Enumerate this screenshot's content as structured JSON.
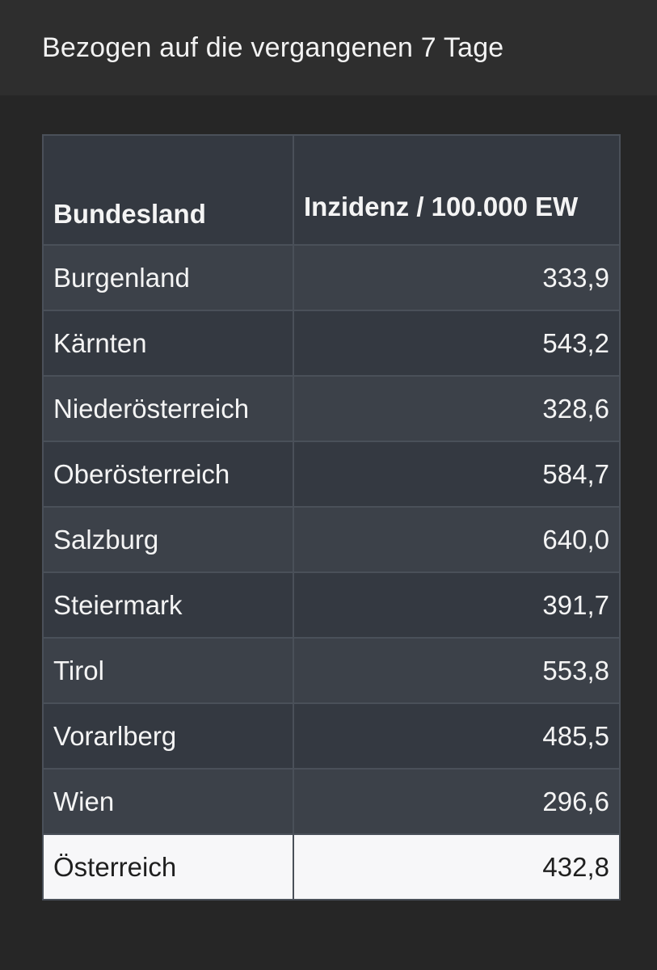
{
  "header": {
    "text": "Bezogen auf die vergangenen 7 Tage"
  },
  "table": {
    "columns": [
      "Bundesland",
      "Inzidenz / 100.000 EW"
    ],
    "rows": [
      {
        "state": "Burgenland",
        "value": "333,9"
      },
      {
        "state": "Kärnten",
        "value": "543,2"
      },
      {
        "state": "Niederösterreich",
        "value": "328,6"
      },
      {
        "state": "Oberösterreich",
        "value": "584,7"
      },
      {
        "state": "Salzburg",
        "value": "640,0"
      },
      {
        "state": "Steiermark",
        "value": "391,7"
      },
      {
        "state": "Tirol",
        "value": "553,8"
      },
      {
        "state": "Vorarlberg",
        "value": "485,5"
      },
      {
        "state": "Wien",
        "value": "296,6"
      }
    ],
    "total": {
      "state": "Österreich",
      "value": "432,8"
    }
  }
}
